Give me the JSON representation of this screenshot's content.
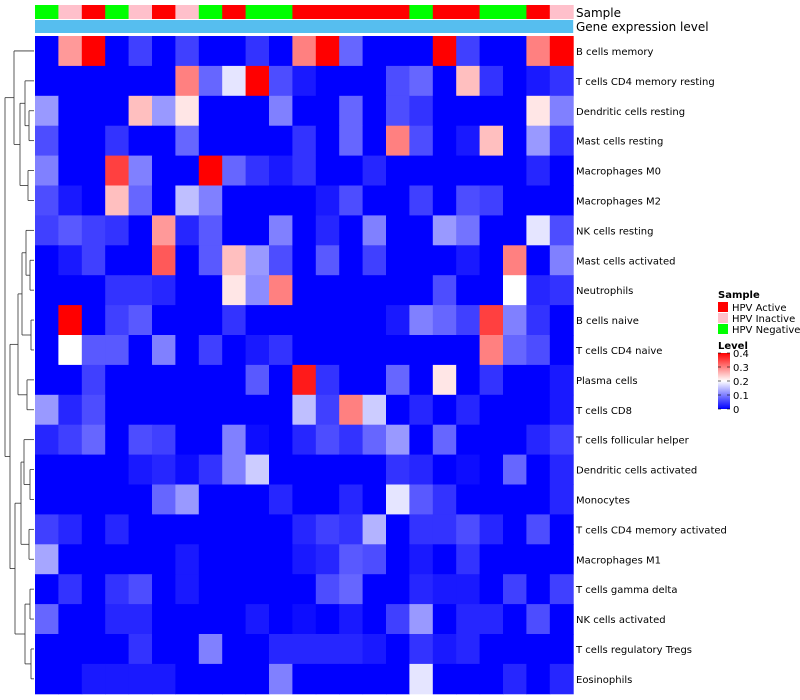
{
  "chart_data": {
    "type": "heatmap",
    "top_annotations": [
      {
        "name": "Sample",
        "label": "Sample",
        "values": [
          "HPV Negative",
          "HPV Inactive",
          "HPV Active",
          "HPV Negative",
          "HPV Inactive",
          "HPV Active",
          "HPV Inactive",
          "HPV Negative",
          "HPV Active",
          "HPV Negative",
          "HPV Negative",
          "HPV Active",
          "HPV Active",
          "HPV Active",
          "HPV Active",
          "HPV Active",
          "HPV Negative",
          "HPV Active",
          "HPV Active",
          "HPV Negative",
          "HPV Negative",
          "HPV Active",
          "HPV Inactive"
        ]
      },
      {
        "name": "Gene expression level",
        "label": "Gene expression level",
        "color": "#56BEEF"
      }
    ],
    "rows": [
      "B cells memory",
      "T cells CD4 memory resting",
      "Dendritic cells resting",
      "Mast cells resting",
      "Macrophages M0",
      "Macrophages M2",
      "NK cells resting",
      "Mast cells activated",
      "Neutrophils",
      "B cells naive",
      "T cells CD4 naive",
      "Plasma cells",
      "T cells CD8",
      "T cells follicular helper",
      "Dendritic cells activated",
      "Monocytes",
      "T cells CD4 memory activated",
      "Macrophages M1",
      "T cells gamma delta",
      "NK cells activated",
      "T cells regulatory  Tregs",
      "Eosinophils"
    ],
    "values": [
      [
        0,
        0.28,
        0.4,
        0,
        0.05,
        0,
        0.05,
        0,
        0,
        0.04,
        0,
        0.3,
        0.4,
        0.08,
        0,
        0,
        0,
        0.4,
        0.05,
        0,
        0,
        0.3,
        0.4
      ],
      [
        0,
        0,
        0,
        0,
        0,
        0,
        0.3,
        0.08,
        0.18,
        0.4,
        0.06,
        0.02,
        0,
        0,
        0,
        0.06,
        0.08,
        0,
        0.25,
        0.04,
        0,
        0.02,
        0.04
      ],
      [
        0.12,
        0,
        0,
        0,
        0.25,
        0.12,
        0.22,
        0,
        0,
        0,
        0.1,
        0,
        0,
        0.08,
        0,
        0.06,
        0.04,
        0,
        0,
        0,
        0,
        0.22,
        0.1
      ],
      [
        0.06,
        0,
        0,
        0.04,
        0,
        0,
        0.08,
        0,
        0,
        0,
        0,
        0.04,
        0,
        0.08,
        0,
        0.3,
        0.06,
        0,
        0.02,
        0.25,
        0,
        0.12,
        0.04
      ],
      [
        0.1,
        0,
        0,
        0.35,
        0.1,
        0,
        0,
        0.4,
        0.08,
        0.04,
        0.02,
        0.04,
        0,
        0,
        0.03,
        0,
        0,
        0,
        0,
        0,
        0,
        0.03,
        0
      ],
      [
        0.06,
        0.02,
        0,
        0.25,
        0.08,
        0,
        0.15,
        0.1,
        0,
        0,
        0,
        0,
        0.02,
        0.06,
        0,
        0,
        0.05,
        0,
        0.06,
        0.05,
        0,
        0,
        0
      ],
      [
        0.05,
        0.07,
        0.05,
        0.04,
        0,
        0.28,
        0.03,
        0.07,
        0,
        0,
        0.1,
        0,
        0.03,
        0,
        0.1,
        0,
        0,
        0.12,
        0.09,
        0,
        0,
        0.18,
        0.06
      ],
      [
        0,
        0.02,
        0.05,
        0,
        0,
        0.33,
        0,
        0.07,
        0.25,
        0.12,
        0.06,
        0,
        0.07,
        0,
        0.05,
        0,
        0,
        0,
        0.02,
        0,
        0.3,
        0,
        0.1
      ],
      [
        0,
        0,
        0,
        0.04,
        0.04,
        0.03,
        0,
        0,
        0.22,
        0.11,
        0.3,
        0,
        0,
        0,
        0,
        0,
        0,
        0.06,
        0,
        0,
        0.2,
        0.03,
        0.04
      ],
      [
        0,
        0.4,
        0,
        0.05,
        0.07,
        0,
        0,
        0,
        0.04,
        0,
        0,
        0,
        0,
        0,
        0,
        0.02,
        0.1,
        0.08,
        0.05,
        0.35,
        0.1,
        0.04,
        0
      ],
      [
        0,
        0.2,
        0.07,
        0.07,
        0,
        0.1,
        0,
        0.05,
        0,
        0.02,
        0.04,
        0,
        0,
        0,
        0,
        0,
        0,
        0,
        0,
        0.3,
        0.08,
        0.06,
        0
      ],
      [
        0,
        0,
        0.05,
        0,
        0,
        0,
        0,
        0,
        0,
        0.07,
        0,
        0.38,
        0.04,
        0,
        0,
        0.08,
        0,
        0.22,
        0,
        0.04,
        0,
        0,
        0.02
      ],
      [
        0.12,
        0.03,
        0.06,
        0,
        0,
        0,
        0,
        0,
        0,
        0,
        0,
        0.15,
        0.05,
        0.3,
        0.16,
        0,
        0.03,
        0,
        0.03,
        0,
        0,
        0,
        0.02
      ],
      [
        0.03,
        0.05,
        0.08,
        0,
        0.06,
        0.05,
        0,
        0,
        0.1,
        0.01,
        0,
        0.03,
        0.06,
        0.04,
        0.08,
        0.12,
        0,
        0.08,
        0,
        0,
        0,
        0.03,
        0.05
      ],
      [
        0,
        0,
        0,
        0,
        0.02,
        0.03,
        0.01,
        0.04,
        0.1,
        0.16,
        0,
        0,
        0,
        0,
        0,
        0.04,
        0.03,
        0,
        0.01,
        0,
        0.08,
        0,
        0.03
      ],
      [
        0,
        0,
        0,
        0,
        0,
        0.08,
        0.12,
        0,
        0,
        0,
        0.03,
        0,
        0,
        0.03,
        0,
        0.18,
        0.07,
        0.04,
        0,
        0,
        0,
        0,
        0.03
      ],
      [
        0.05,
        0.03,
        0,
        0.03,
        0,
        0,
        0,
        0,
        0,
        0,
        0,
        0.03,
        0.05,
        0.04,
        0.14,
        0,
        0.04,
        0.04,
        0.06,
        0.03,
        0,
        0.06,
        0
      ],
      [
        0.13,
        0,
        0,
        0,
        0,
        0,
        0.02,
        0,
        0,
        0,
        0,
        0.02,
        0.03,
        0.07,
        0.06,
        0,
        0.02,
        0,
        0.04,
        0,
        0,
        0,
        0
      ],
      [
        0,
        0.04,
        0,
        0.04,
        0.06,
        0,
        0.02,
        0,
        0,
        0,
        0,
        0,
        0.06,
        0.08,
        0,
        0,
        0.03,
        0.02,
        0.02,
        0,
        0.05,
        0,
        0.05
      ],
      [
        0.08,
        0,
        0,
        0.03,
        0.03,
        0,
        0,
        0,
        0,
        0.02,
        0,
        0.01,
        0,
        0.02,
        0,
        0.05,
        0.12,
        0,
        0.03,
        0.03,
        0,
        0.06,
        0
      ],
      [
        0,
        0,
        0,
        0,
        0.04,
        0,
        0,
        0.1,
        0,
        0,
        0.03,
        0.03,
        0.03,
        0.03,
        0.02,
        0,
        0.04,
        0.02,
        0.03,
        0,
        0,
        0,
        0
      ],
      [
        0,
        0,
        0.02,
        0.02,
        0.02,
        0.02,
        0,
        0,
        0,
        0,
        0.1,
        0,
        0,
        0,
        0,
        0,
        0.18,
        0,
        0,
        0,
        0.03,
        0,
        0.03
      ]
    ],
    "color_scale": {
      "min": 0,
      "max": 0.4,
      "colors": [
        "#0000FF",
        "#FFFFFF",
        "#FF0000"
      ]
    },
    "legends": {
      "sample": {
        "title": "Sample",
        "items": [
          {
            "label": "HPV Active",
            "color": "#FF0000"
          },
          {
            "label": "HPV Inactive",
            "color": "#FFC0CB"
          },
          {
            "label": "HPV Negative",
            "color": "#00FF00"
          }
        ]
      },
      "level": {
        "title": "Level",
        "ticks": [
          {
            "label": "0.4",
            "value": 0.4
          },
          {
            "label": "0.3",
            "value": 0.3
          },
          {
            "label": "0.2",
            "value": 0.2
          },
          {
            "label": "0.1",
            "value": 0.1
          },
          {
            "label": "0",
            "value": 0
          }
        ]
      }
    },
    "row_dendrogram": true
  }
}
